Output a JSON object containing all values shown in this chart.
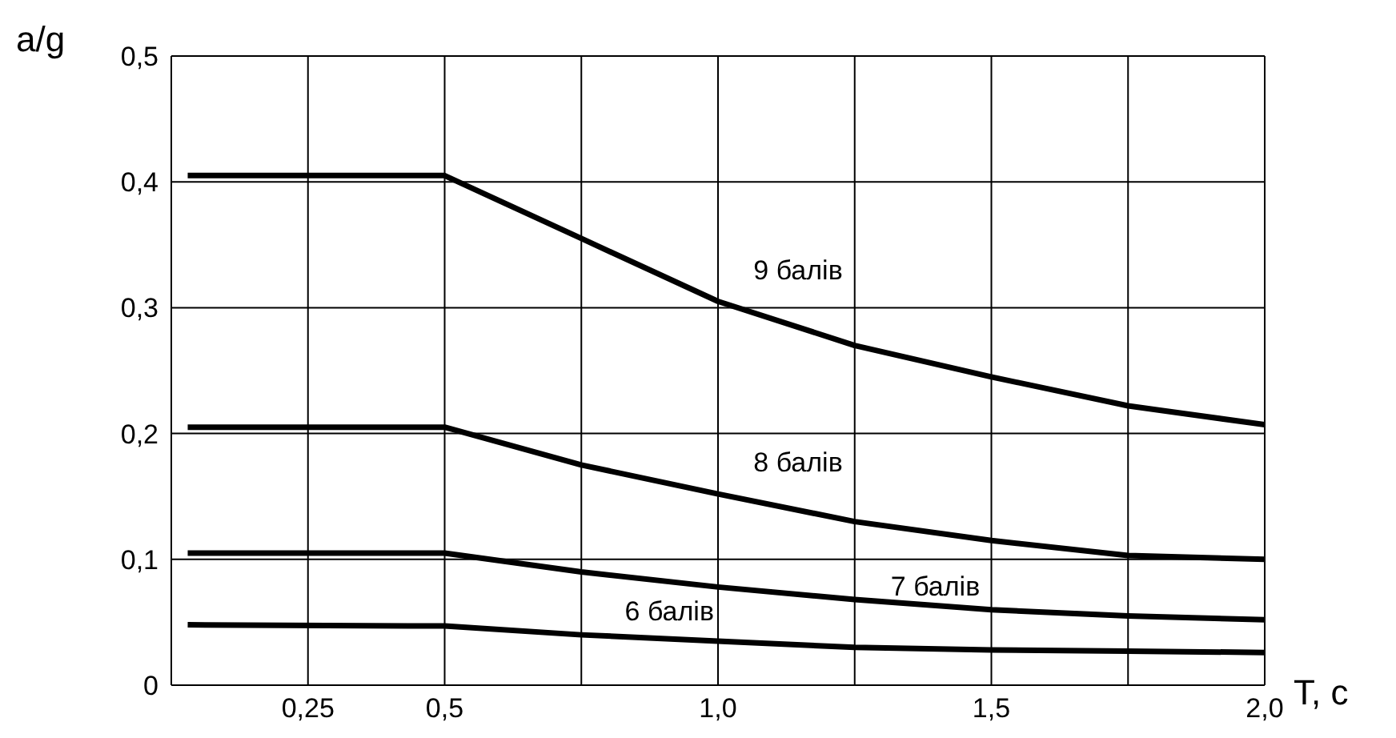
{
  "chart_data": {
    "type": "line",
    "xlabel": "T, c",
    "ylabel": "a/g",
    "x": [
      0.03,
      0.5,
      0.75,
      1.0,
      1.25,
      1.5,
      1.75,
      2.0
    ],
    "series": [
      {
        "name": "9 балів",
        "color": "#000000",
        "values": [
          0.405,
          0.405,
          0.355,
          0.305,
          0.27,
          0.245,
          0.222,
          0.207
        ]
      },
      {
        "name": "8 балів",
        "color": "#000000",
        "values": [
          0.205,
          0.205,
          0.175,
          0.152,
          0.13,
          0.115,
          0.103,
          0.1
        ]
      },
      {
        "name": "7 балів",
        "color": "#000000",
        "values": [
          0.105,
          0.105,
          0.09,
          0.078,
          0.068,
          0.06,
          0.055,
          0.052
        ]
      },
      {
        "name": "6 балів",
        "color": "#000000",
        "values": [
          0.048,
          0.047,
          0.04,
          0.035,
          0.03,
          0.028,
          0.027,
          0.026
        ]
      }
    ],
    "xlim": [
      0,
      2
    ],
    "ylim": [
      0,
      0.5
    ],
    "xticks": [
      {
        "value": 0,
        "label": null
      },
      {
        "value": 0.25,
        "label": "0,25"
      },
      {
        "value": 0.5,
        "label": "0,5"
      },
      {
        "value": 0.75,
        "label": null
      },
      {
        "value": 1.0,
        "label": "1,0"
      },
      {
        "value": 1.25,
        "label": null
      },
      {
        "value": 1.5,
        "label": "1,5"
      },
      {
        "value": 1.75,
        "label": null
      },
      {
        "value": 2.0,
        "label": "2,0"
      }
    ],
    "yticks": [
      {
        "value": 0,
        "label": "0"
      },
      {
        "value": 0.1,
        "label": "0,1"
      },
      {
        "value": 0.2,
        "label": "0,2"
      },
      {
        "value": 0.3,
        "label": "0,3"
      },
      {
        "value": 0.4,
        "label": "0,4"
      },
      {
        "value": 0.5,
        "label": "0,5"
      }
    ],
    "grid": true,
    "marker": "none",
    "line_style": "solid"
  }
}
